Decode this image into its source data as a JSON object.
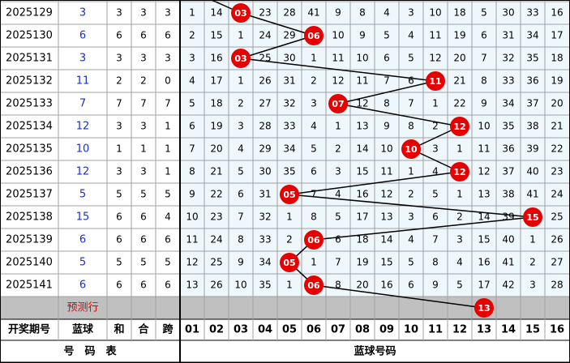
{
  "columns": [
    "01",
    "02",
    "03",
    "04",
    "05",
    "06",
    "07",
    "08",
    "09",
    "10",
    "11",
    "12",
    "13",
    "14",
    "15",
    "16"
  ],
  "rows": [
    {
      "period": "2025129",
      "blue": "3",
      "sum": "3",
      "mod": "3",
      "span": "3",
      "ball": "03",
      "cells": [
        "1",
        "14",
        null,
        "23",
        "28",
        "41",
        "9",
        "8",
        "4",
        "3",
        "10",
        "18",
        "5",
        "30",
        "33",
        "16"
      ]
    },
    {
      "period": "2025130",
      "blue": "6",
      "sum": "6",
      "mod": "6",
      "span": "6",
      "ball": "06",
      "cells": [
        "2",
        "15",
        "1",
        "24",
        "29",
        null,
        "10",
        "9",
        "5",
        "4",
        "11",
        "19",
        "6",
        "31",
        "34",
        "17"
      ]
    },
    {
      "period": "2025131",
      "blue": "3",
      "sum": "3",
      "mod": "3",
      "span": "3",
      "ball": "03",
      "cells": [
        "3",
        "16",
        null,
        "25",
        "30",
        "1",
        "11",
        "10",
        "6",
        "5",
        "12",
        "20",
        "7",
        "32",
        "35",
        "18"
      ]
    },
    {
      "period": "2025132",
      "blue": "11",
      "sum": "2",
      "mod": "2",
      "span": "0",
      "ball": "11",
      "cells": [
        "4",
        "17",
        "1",
        "26",
        "31",
        "2",
        "12",
        "11",
        "7",
        "6",
        null,
        "21",
        "8",
        "33",
        "36",
        "19"
      ]
    },
    {
      "period": "2025133",
      "blue": "7",
      "sum": "7",
      "mod": "7",
      "span": "7",
      "ball": "07",
      "cells": [
        "5",
        "18",
        "2",
        "27",
        "32",
        "3",
        null,
        "12",
        "8",
        "7",
        "1",
        "22",
        "9",
        "34",
        "37",
        "20"
      ]
    },
    {
      "period": "2025134",
      "blue": "12",
      "sum": "3",
      "mod": "3",
      "span": "1",
      "ball": "12",
      "cells": [
        "6",
        "19",
        "3",
        "28",
        "33",
        "4",
        "1",
        "13",
        "9",
        "8",
        "2",
        null,
        "10",
        "35",
        "38",
        "21"
      ]
    },
    {
      "period": "2025135",
      "blue": "10",
      "sum": "1",
      "mod": "1",
      "span": "1",
      "ball": "10",
      "cells": [
        "7",
        "20",
        "4",
        "29",
        "34",
        "5",
        "2",
        "14",
        "10",
        null,
        "3",
        "1",
        "11",
        "36",
        "39",
        "22"
      ]
    },
    {
      "period": "2025136",
      "blue": "12",
      "sum": "3",
      "mod": "3",
      "span": "1",
      "ball": "12",
      "cells": [
        "8",
        "21",
        "5",
        "30",
        "35",
        "6",
        "3",
        "15",
        "11",
        "1",
        "4",
        null,
        "12",
        "37",
        "40",
        "23"
      ]
    },
    {
      "period": "2025137",
      "blue": "5",
      "sum": "5",
      "mod": "5",
      "span": "5",
      "ball": "05",
      "cells": [
        "9",
        "22",
        "6",
        "31",
        null,
        "7",
        "4",
        "16",
        "12",
        "2",
        "5",
        "1",
        "13",
        "38",
        "41",
        "24"
      ]
    },
    {
      "period": "2025138",
      "blue": "15",
      "sum": "6",
      "mod": "6",
      "span": "4",
      "ball": "15",
      "cells": [
        "10",
        "23",
        "7",
        "32",
        "1",
        "8",
        "5",
        "17",
        "13",
        "3",
        "6",
        "2",
        "14",
        "39",
        null,
        "25"
      ]
    },
    {
      "period": "2025139",
      "blue": "6",
      "sum": "6",
      "mod": "6",
      "span": "6",
      "ball": "06",
      "cells": [
        "11",
        "24",
        "8",
        "33",
        "2",
        null,
        "6",
        "18",
        "14",
        "4",
        "7",
        "3",
        "15",
        "40",
        "1",
        "26"
      ]
    },
    {
      "period": "2025140",
      "blue": "5",
      "sum": "5",
      "mod": "5",
      "span": "5",
      "ball": "05",
      "cells": [
        "12",
        "25",
        "9",
        "34",
        null,
        "1",
        "7",
        "19",
        "15",
        "5",
        "8",
        "4",
        "16",
        "41",
        "2",
        "27"
      ]
    },
    {
      "period": "2025141",
      "blue": "6",
      "sum": "6",
      "mod": "6",
      "span": "6",
      "ball": "06",
      "cells": [
        "13",
        "26",
        "10",
        "35",
        "1",
        null,
        "8",
        "20",
        "16",
        "6",
        "9",
        "5",
        "17",
        "42",
        "3",
        "28"
      ]
    }
  ],
  "prediction": {
    "label": "预测行",
    "ball": "13"
  },
  "header": {
    "period": "开奖期号",
    "blue": "蓝球",
    "sum": "和",
    "mod": "合",
    "span": "跨"
  },
  "footer": {
    "left": "号　码　表",
    "right": "蓝球号码"
  }
}
